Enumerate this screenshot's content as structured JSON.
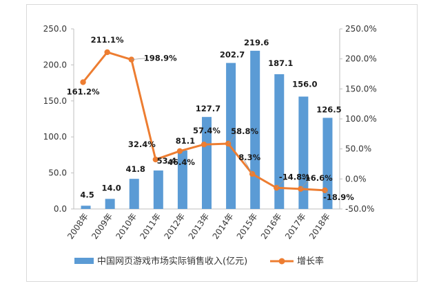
{
  "chart_data": {
    "type": "bar+line",
    "categories": [
      "2008年",
      "2009年",
      "2010年",
      "2011年",
      "2012年",
      "2013年",
      "2014年",
      "2015年",
      "2016年",
      "2017年",
      "2018年"
    ],
    "series": [
      {
        "name": "中国网页游戏市场实际销售收入(亿元)",
        "type": "bar",
        "axis": "left",
        "values": [
          4.5,
          14.0,
          41.8,
          53.4,
          81.1,
          127.7,
          202.7,
          219.6,
          187.1,
          156.0,
          126.5
        ],
        "labels": [
          "4.5",
          "14.0",
          "41.8",
          "53.4",
          "81.1",
          "127.7",
          "202.7",
          "219.6",
          "187.1",
          "156.0",
          "126.5"
        ],
        "color": "#5b9bd5"
      },
      {
        "name": "增长率",
        "type": "line",
        "axis": "right",
        "values": [
          161.2,
          211.1,
          198.9,
          32.4,
          46.4,
          57.4,
          58.8,
          8.3,
          -14.8,
          -16.6,
          -18.9
        ],
        "labels": [
          "161.2%",
          "211.1%",
          "198.9%",
          "32.4%",
          "46.4%",
          "57.4%",
          "58.8%",
          "8.3%",
          "-14.8%",
          "-16.6%",
          "-18.9%"
        ],
        "color": "#ed7d31"
      }
    ],
    "left_axis": {
      "ylim": [
        0,
        250
      ],
      "ticks": [
        "0.0",
        "50.0",
        "100.0",
        "150.0",
        "200.0",
        "250.0"
      ]
    },
    "right_axis": {
      "ylim": [
        -50,
        250
      ],
      "ticks": [
        "-50.0%",
        "0.0%",
        "50.0%",
        "100.0%",
        "150.0%",
        "200.0%",
        "250.0%"
      ]
    },
    "legend": {
      "position": "bottom",
      "entries": [
        "中国网页游戏市场实际销售收入(亿元)",
        "增长率"
      ]
    },
    "grid": false
  }
}
